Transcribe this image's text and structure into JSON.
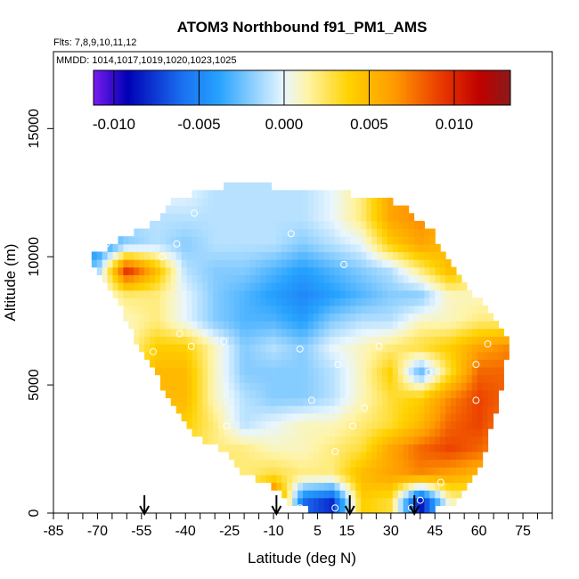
{
  "chart_data": {
    "type": "heatmap",
    "title": "ATOM3 Northbound f91_PM1_AMS",
    "flights_label": "Flts: 7,8,9,10,11,12",
    "dates_label": "MMDD: 1014,1017,1019,1020,1023,1025",
    "xlabel": "Latitude (deg N)",
    "ylabel": "Altitude (m)",
    "xlim": [
      -85,
      85
    ],
    "ylim": [
      0,
      18000
    ],
    "x_ticks": [
      "-85",
      "-70",
      "-55",
      "-40",
      "-25",
      "-10",
      "5",
      "15",
      "30",
      "45",
      "60",
      "75"
    ],
    "x_tick_values": [
      -85,
      -70,
      -55,
      -40,
      -25,
      -10,
      5,
      15,
      30,
      45,
      60,
      75
    ],
    "y_ticks": [
      "0",
      "5000",
      "10000",
      "15000"
    ],
    "y_tick_values": [
      0,
      5000,
      10000,
      15000
    ],
    "colorbar": {
      "range": [
        -0.0112,
        0.0133
      ],
      "tick_labels": [
        "-0.010",
        "-0.005",
        "0.000",
        "0.005",
        "0.010"
      ],
      "tick_values": [
        -0.01,
        -0.005,
        0.0,
        0.005,
        0.01
      ],
      "colors": [
        "#7a1cf0",
        "#0000b4",
        "#1a6ff0",
        "#27a3ff",
        "#8fd0ff",
        "#e8f6ff",
        "#fff4a6",
        "#ffd200",
        "#ff9a00",
        "#ea3a00",
        "#c00000",
        "#8b1a1a"
      ],
      "color_stops": [
        -0.0112,
        -0.0092,
        -0.006,
        -0.0038,
        -0.0018,
        0.0,
        0.0014,
        0.0038,
        0.0065,
        0.0092,
        0.0115,
        0.0133
      ]
    },
    "arrows_lat": [
      -54,
      -9,
      16,
      38
    ],
    "envelope": {
      "lat": [
        -72,
        -64,
        -58,
        -52,
        -44,
        -36,
        -28,
        -20,
        -12,
        -4,
        4,
        12,
        20,
        28,
        36,
        44,
        52,
        60,
        66,
        70
      ],
      "alt_min": [
        9900,
        8500,
        7000,
        5800,
        4100,
        3000,
        2500,
        1500,
        1100,
        400,
        100,
        100,
        100,
        100,
        100,
        100,
        400,
        1600,
        4000,
        6500
      ],
      "alt_max": [
        10000,
        10600,
        10900,
        11200,
        12200,
        12500,
        12700,
        13000,
        12800,
        12600,
        12600,
        12500,
        12400,
        12300,
        11800,
        11000,
        9500,
        8300,
        7300,
        6800
      ]
    },
    "field": {
      "lat": [
        -70,
        -60,
        -50,
        -40,
        -30,
        -20,
        -10,
        0,
        10,
        20,
        30,
        40,
        50,
        60,
        70
      ],
      "alt": [
        500,
        1500,
        2500,
        3500,
        4500,
        5500,
        6500,
        7500,
        8500,
        9500,
        10500,
        11500,
        12500
      ],
      "values": [
        [
          0.0,
          0.003,
          0.004,
          0.004,
          0.003,
          0.001,
          0.01,
          -0.006,
          -0.008,
          0.004,
          0.003,
          -0.009,
          0.001,
          0.002,
          0.002
        ],
        [
          0.0,
          0.003,
          0.004,
          0.004,
          0.003,
          0.002,
          0.003,
          0.002,
          0.002,
          0.005,
          0.006,
          0.007,
          0.006,
          0.005,
          0.004
        ],
        [
          0.0,
          0.003,
          0.004,
          0.003,
          0.002,
          0.002,
          0.001,
          0.001,
          0.002,
          0.003,
          0.006,
          0.008,
          0.009,
          0.008,
          0.006
        ],
        [
          0.0,
          0.002,
          0.004,
          0.004,
          0.002,
          -0.001,
          0.0,
          0.001,
          0.001,
          0.002,
          0.003,
          0.005,
          0.008,
          0.009,
          0.007
        ],
        [
          0.001,
          0.002,
          0.005,
          0.005,
          0.001,
          -0.001,
          -0.002,
          -0.002,
          -0.001,
          0.001,
          0.003,
          0.004,
          0.007,
          0.009,
          0.008
        ],
        [
          0.001,
          0.002,
          0.005,
          0.005,
          0.001,
          -0.002,
          -0.002,
          -0.002,
          -0.001,
          0.001,
          0.004,
          -0.003,
          0.003,
          0.008,
          0.008
        ],
        [
          0.001,
          0.001,
          0.004,
          0.004,
          0.001,
          -0.002,
          -0.001,
          -0.002,
          0.0,
          0.001,
          0.002,
          0.003,
          0.004,
          0.006,
          0.007
        ],
        [
          0.0,
          0.001,
          0.002,
          0.0,
          -0.002,
          -0.003,
          -0.003,
          -0.004,
          -0.002,
          -0.001,
          -0.001,
          0.001,
          0.001,
          0.002,
          0.002
        ],
        [
          0.0,
          0.002,
          0.002,
          0.0,
          -0.002,
          -0.003,
          -0.004,
          -0.005,
          -0.004,
          -0.003,
          -0.002,
          -0.002,
          0.001,
          0.001,
          0.001
        ],
        [
          -0.002,
          0.01,
          0.005,
          -0.001,
          -0.002,
          -0.002,
          -0.003,
          -0.004,
          -0.003,
          -0.002,
          -0.001,
          0.002,
          0.005,
          0.003,
          0.002
        ],
        [
          -0.005,
          -0.002,
          -0.001,
          -0.002,
          -0.001,
          -0.001,
          -0.001,
          -0.002,
          -0.001,
          0.0,
          0.004,
          0.006,
          0.005,
          0.003,
          0.002
        ],
        [
          0.0,
          -0.001,
          -0.001,
          -0.001,
          -0.001,
          -0.001,
          -0.001,
          -0.001,
          0.0,
          0.002,
          0.006,
          0.007,
          0.005,
          0.003,
          0.002
        ],
        [
          0.0,
          0.0,
          0.0,
          0.0,
          -0.001,
          -0.001,
          -0.001,
          -0.001,
          0.0,
          0.002,
          0.006,
          0.007,
          0.005,
          0.003,
          0.002
        ]
      ]
    },
    "sample_points": [
      {
        "lat": -67,
        "alt": 10500
      },
      {
        "lat": -48,
        "alt": 10000
      },
      {
        "lat": -43,
        "alt": 10500
      },
      {
        "lat": -37,
        "alt": 11700
      },
      {
        "lat": -4,
        "alt": 10900
      },
      {
        "lat": 14,
        "alt": 9700
      },
      {
        "lat": 42,
        "alt": 11500
      },
      {
        "lat": -67,
        "alt": 8400
      },
      {
        "lat": -42,
        "alt": 7000
      },
      {
        "lat": -27,
        "alt": 6700
      },
      {
        "lat": -1,
        "alt": 6400
      },
      {
        "lat": 26,
        "alt": 6500
      },
      {
        "lat": 63,
        "alt": 6600
      },
      {
        "lat": -38,
        "alt": 6500
      },
      {
        "lat": -51,
        "alt": 6300
      },
      {
        "lat": 12,
        "alt": 5800
      },
      {
        "lat": 43,
        "alt": 5500
      },
      {
        "lat": 59,
        "alt": 5800
      },
      {
        "lat": 59,
        "alt": 4400
      },
      {
        "lat": 3,
        "alt": 4400
      },
      {
        "lat": 21,
        "alt": 4100
      },
      {
        "lat": -26,
        "alt": 3400
      },
      {
        "lat": 17,
        "alt": 3400
      },
      {
        "lat": -46,
        "alt": 3100
      },
      {
        "lat": 70,
        "alt": 4800
      },
      {
        "lat": 11,
        "alt": 2400
      },
      {
        "lat": 11,
        "alt": 200
      },
      {
        "lat": -1,
        "alt": 200
      },
      {
        "lat": 37,
        "alt": 200
      },
      {
        "lat": 40,
        "alt": 500
      },
      {
        "lat": 47,
        "alt": 1200
      }
    ]
  }
}
